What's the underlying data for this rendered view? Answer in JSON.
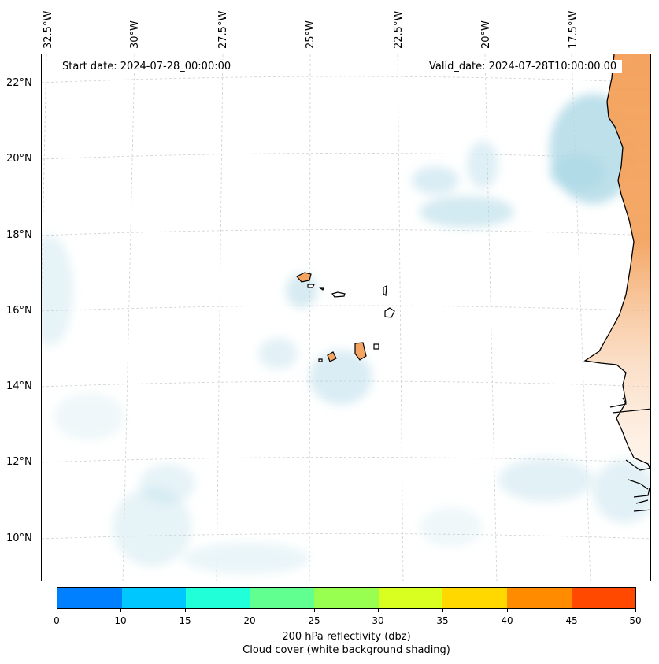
{
  "header": {
    "start_date": "Start date: 2024-07-28_00:00:00",
    "valid_date": "Valid_date: 2024-07-28T10:00:00.00"
  },
  "map": {
    "lon_labels": [
      "32.5°W",
      "30°W",
      "27.5°W",
      "25°W",
      "22.5°W",
      "20°W",
      "17.5°W"
    ],
    "lat_labels": [
      "22°N",
      "20°N",
      "18°N",
      "16°N",
      "14°N",
      "12°N",
      "10°N"
    ],
    "extent": {
      "lon_min": -32.7,
      "lon_max": -15.5,
      "lat_min": 9.0,
      "lat_max": 22.8
    },
    "colors": {
      "land_fill": "#f4a460",
      "coastline": "#000000",
      "cloud": "#add8e6",
      "gridline": "#cccccc"
    }
  },
  "colorbar": {
    "ticks": [
      "0",
      "10",
      "15",
      "20",
      "25",
      "30",
      "35",
      "40",
      "45",
      "50"
    ],
    "colors": [
      "#0080ff",
      "#00c8ff",
      "#20ffd8",
      "#60ff90",
      "#98ff50",
      "#d8ff20",
      "#ffd800",
      "#ff8c00",
      "#ff4800"
    ],
    "label_line1": "200 hPa reflectivity (dbz)",
    "label_line2": "Cloud cover (white background shading)"
  }
}
